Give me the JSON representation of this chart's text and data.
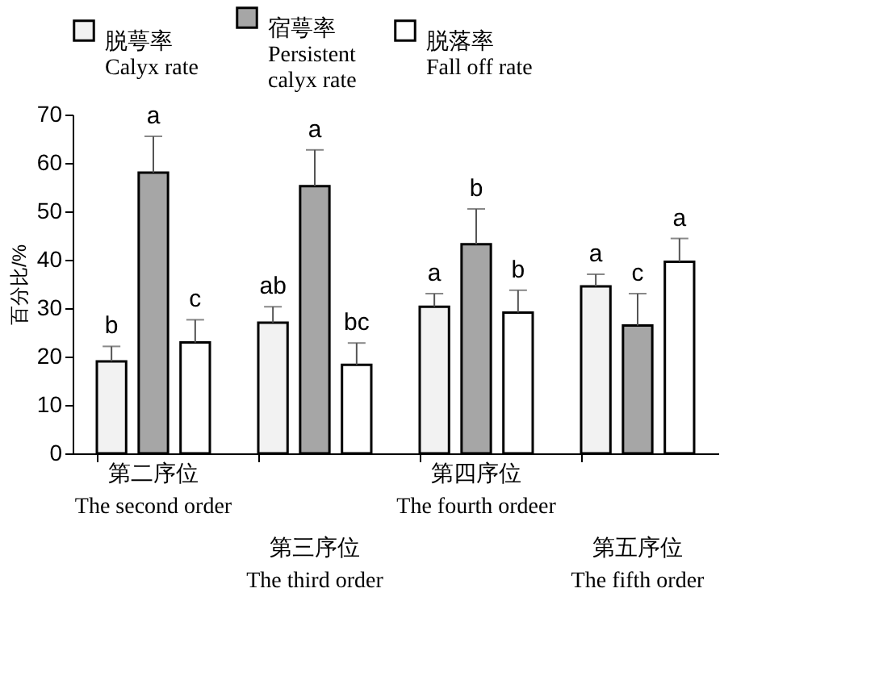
{
  "chart_data": {
    "type": "bar",
    "ylabel": "百分比/%",
    "categories": [
      "第二序位\nThe second order",
      "第三序位\nThe third order",
      "第四序位\nThe fourth ordeer",
      "第五序位\nThe fifth order"
    ],
    "series": [
      {
        "name": "脱萼率\nCalyx rate",
        "color": "#f2f2f2",
        "values": [
          19.0,
          27.0,
          30.3,
          34.5
        ],
        "errors": [
          [
            19.0,
            22.1
          ],
          [
            27.0,
            30.3
          ],
          [
            30.3,
            33.0
          ],
          [
            34.5,
            37.0
          ]
        ],
        "value_labels": [
          "b",
          "ab",
          "a",
          "a"
        ]
      },
      {
        "name": "宿萼率\nPersistent\ncalyx rate",
        "color": "#a6a6a6",
        "values": [
          58.0,
          55.2,
          43.2,
          26.4
        ],
        "errors": [
          [
            58.0,
            65.5
          ],
          [
            55.2,
            62.7
          ],
          [
            43.2,
            50.5
          ],
          [
            26.4,
            33.0
          ]
        ],
        "value_labels": [
          "a",
          "a",
          "b",
          "c"
        ]
      },
      {
        "name": "脱落率\nFall off rate",
        "color": "#ffffff",
        "values": [
          22.9,
          18.3,
          29.1,
          39.6
        ],
        "errors": [
          [
            22.9,
            27.6
          ],
          [
            18.3,
            22.8
          ],
          [
            29.1,
            33.7
          ],
          [
            39.6,
            44.4
          ]
        ],
        "value_labels": [
          "c",
          "bc",
          "b",
          "a"
        ]
      }
    ],
    "ylim": [
      0,
      70
    ],
    "yticks": [
      0,
      10,
      20,
      30,
      40,
      50,
      60,
      70
    ],
    "grid": false,
    "legend": "top"
  }
}
